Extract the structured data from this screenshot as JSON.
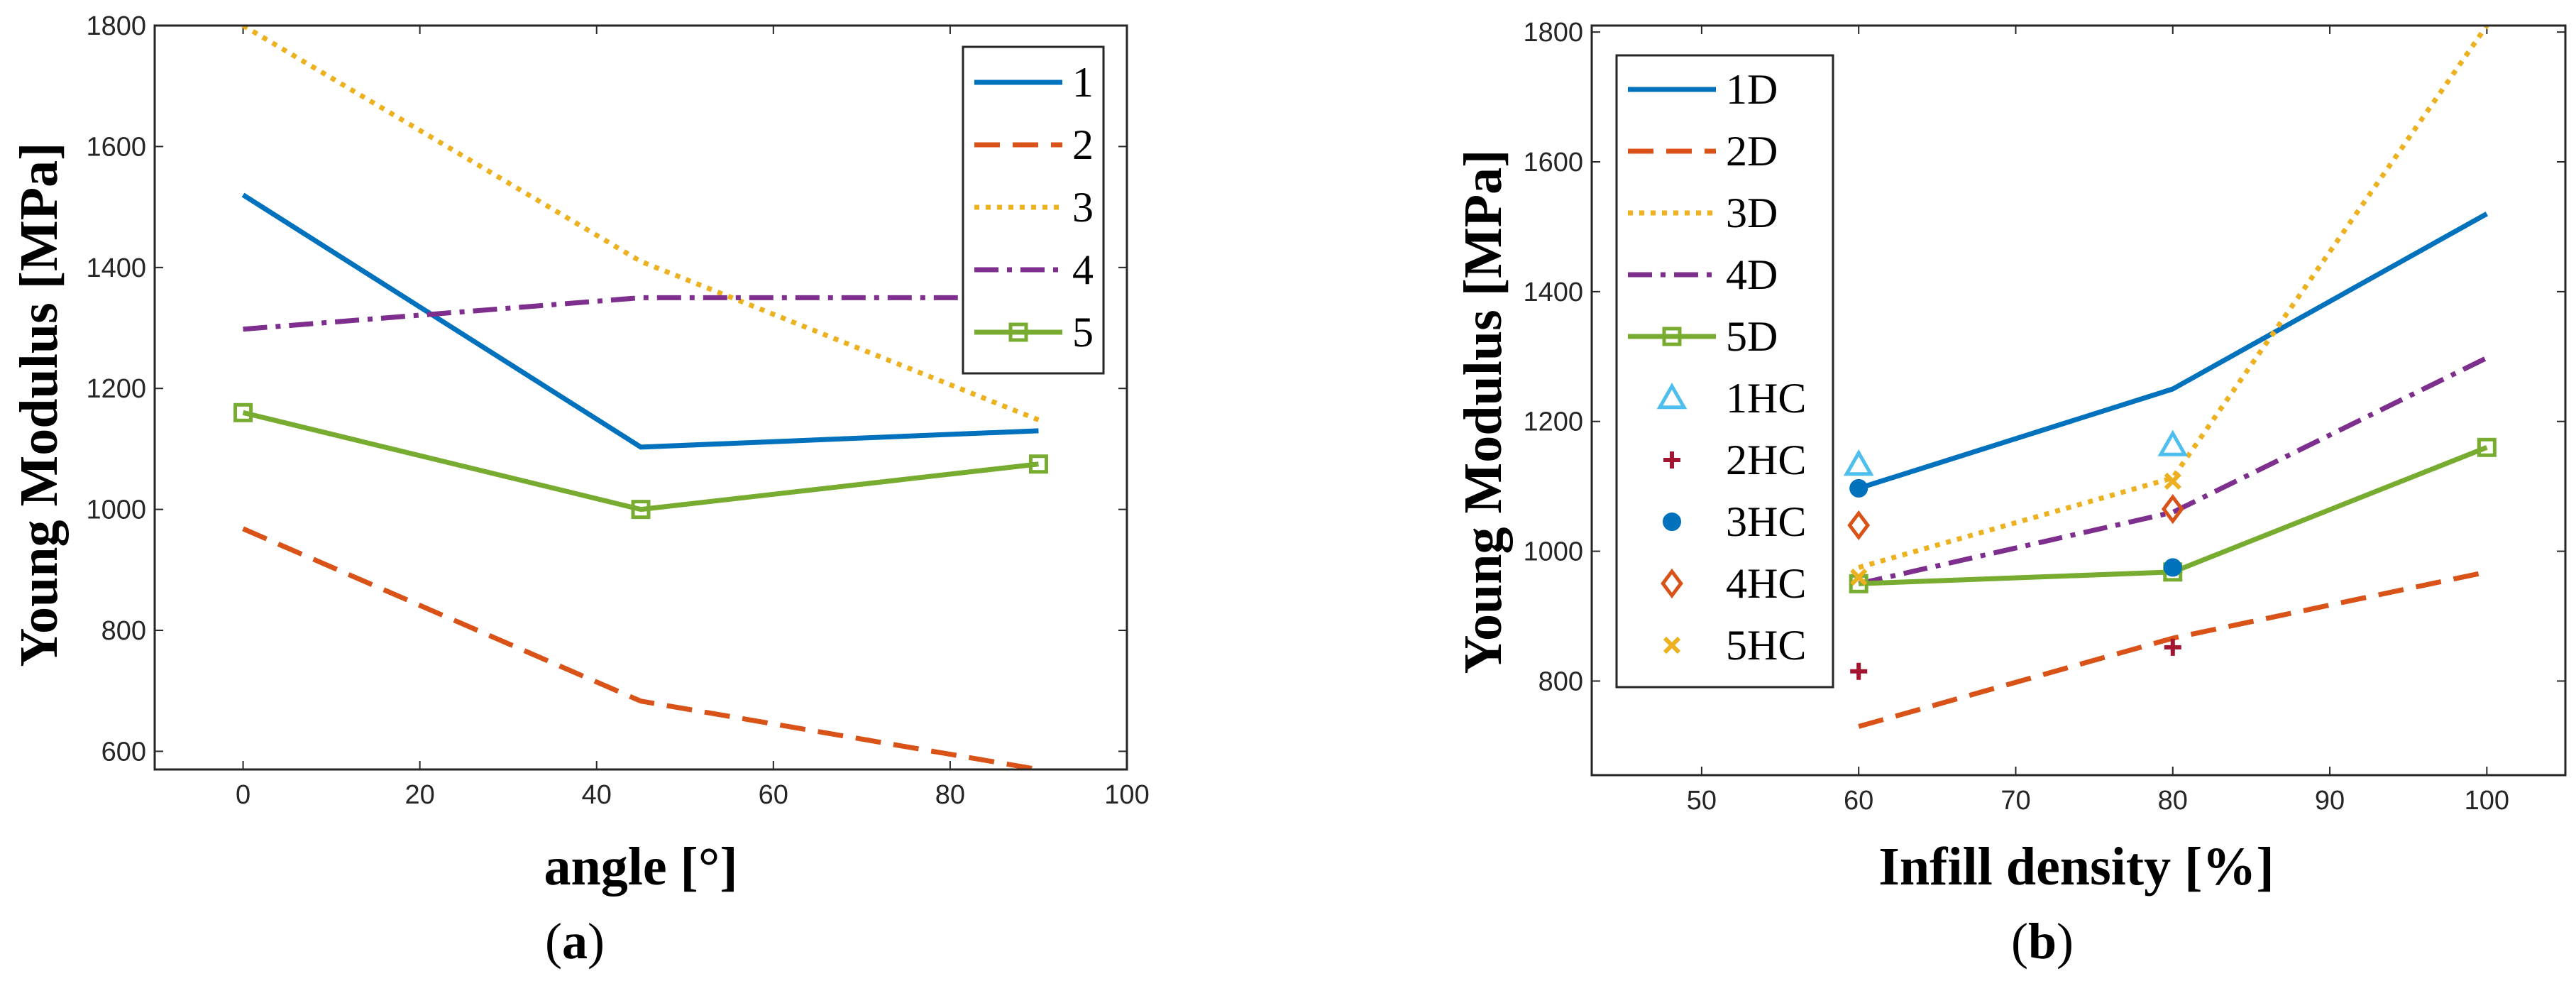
{
  "chart_data": [
    {
      "panel": "a",
      "type": "line",
      "xlabel": "angle [°]",
      "ylabel": "Young Modulus [MPa]",
      "xlim": [
        -10,
        100
      ],
      "ylim": [
        570,
        1800
      ],
      "xticks": [
        "0",
        "20",
        "40",
        "60",
        "80",
        "100"
      ],
      "yticks": [
        "600",
        "800",
        "1000",
        "1200",
        "1400",
        "1600",
        "1800"
      ],
      "legend_position": "top-right",
      "series": [
        {
          "name": "1",
          "color": "#0072BD",
          "dash": "solid",
          "marker": "none",
          "x": [
            0,
            45,
            90
          ],
          "y": [
            1520,
            1103,
            1130
          ]
        },
        {
          "name": "2",
          "color": "#D95319",
          "dash": "dashed",
          "marker": "none",
          "x": [
            0,
            45,
            90
          ],
          "y": [
            968,
            683,
            570
          ]
        },
        {
          "name": "3",
          "color": "#EDB120",
          "dash": "dotted",
          "marker": "none",
          "x": [
            0,
            45,
            90
          ],
          "y": [
            1800,
            1410,
            1148
          ]
        },
        {
          "name": "4",
          "color": "#7E2F8E",
          "dash": "dashdot",
          "marker": "none",
          "x": [
            0,
            45,
            90
          ],
          "y": [
            1298,
            1350,
            1350
          ]
        },
        {
          "name": "5",
          "color": "#77AC30",
          "dash": "solid",
          "marker": "square",
          "x": [
            0,
            45,
            90
          ],
          "y": [
            1160,
            1000,
            1075
          ]
        }
      ]
    },
    {
      "panel": "b",
      "type": "line",
      "xlabel": "Infill density [%]",
      "ylabel": "Young Modulus [MPa]",
      "xlim": [
        43,
        105
      ],
      "ylim": [
        655,
        1810
      ],
      "xticks": [
        "50",
        "60",
        "70",
        "80",
        "90",
        "100"
      ],
      "yticks": [
        "800",
        "1000",
        "1200",
        "1400",
        "1600",
        "1800"
      ],
      "legend_position": "top-left",
      "series": [
        {
          "name": "1D",
          "color": "#0072BD",
          "dash": "solid",
          "marker": "none",
          "x": [
            60,
            80,
            100
          ],
          "y": [
            1097,
            1250,
            1520
          ]
        },
        {
          "name": "2D",
          "color": "#D95319",
          "dash": "dashed",
          "marker": "none",
          "x": [
            60,
            80,
            100
          ],
          "y": [
            730,
            866,
            968
          ]
        },
        {
          "name": "3D",
          "color": "#EDB120",
          "dash": "dotted",
          "marker": "none",
          "x": [
            60,
            80,
            100
          ],
          "y": [
            975,
            1113,
            1810
          ]
        },
        {
          "name": "4D",
          "color": "#7E2F8E",
          "dash": "dashdot",
          "marker": "none",
          "x": [
            60,
            80,
            100
          ],
          "y": [
            950,
            1060,
            1298
          ]
        },
        {
          "name": "5D",
          "color": "#77AC30",
          "dash": "solid",
          "marker": "square",
          "x": [
            60,
            80,
            100
          ],
          "y": [
            950,
            968,
            1160
          ]
        },
        {
          "name": "1HC",
          "color": "#4DBEEE",
          "dash": "none",
          "marker": "triangle",
          "x": [
            60,
            80
          ],
          "y": [
            1133,
            1163
          ]
        },
        {
          "name": "2HC",
          "color": "#A2142F",
          "dash": "none",
          "marker": "plus",
          "x": [
            60,
            80
          ],
          "y": [
            815,
            852
          ]
        },
        {
          "name": "3HC",
          "color": "#0072BD",
          "dash": "none",
          "marker": "circle",
          "x": [
            60,
            80
          ],
          "y": [
            1097,
            975
          ]
        },
        {
          "name": "4HC",
          "color": "#D95319",
          "dash": "none",
          "marker": "diamond",
          "x": [
            60,
            80
          ],
          "y": [
            1040,
            1065
          ]
        },
        {
          "name": "5HC",
          "color": "#EDB120",
          "dash": "none",
          "marker": "x",
          "x": [
            60,
            80
          ],
          "y": [
            960,
            1108
          ]
        }
      ]
    }
  ],
  "captions": {
    "a": "(a)",
    "b": "(b)"
  }
}
